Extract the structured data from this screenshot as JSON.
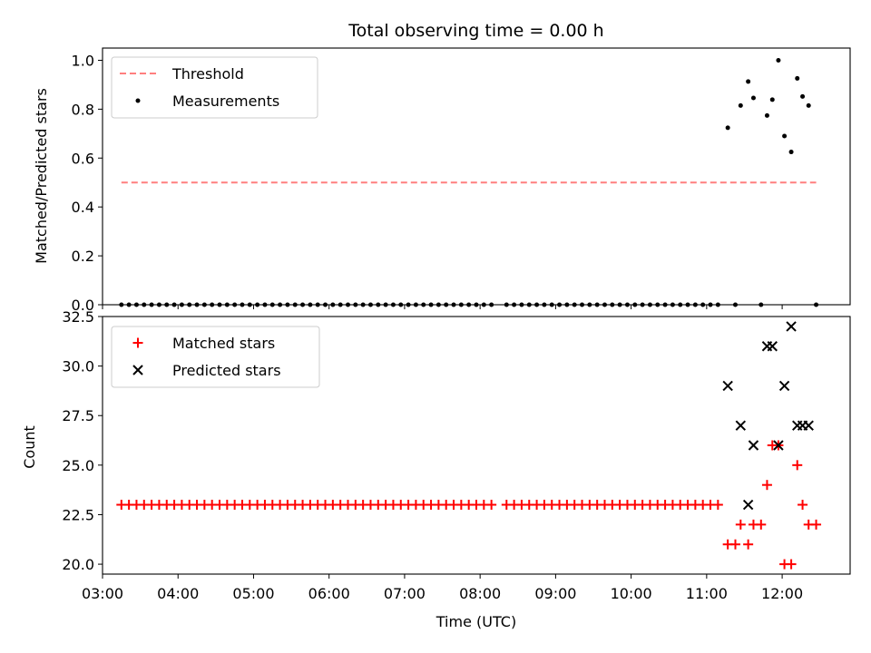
{
  "chart_data": [
    {
      "type": "scatter",
      "title": "Total observing time = 0.00 h",
      "ylabel": "Matched/Predicted stars",
      "xlabel": "",
      "xlim": [
        3.0,
        12.9
      ],
      "ylim": [
        0.0,
        1.05
      ],
      "yticks": [
        0.0,
        0.2,
        0.4,
        0.6,
        0.8,
        1.0
      ],
      "ytick_labels": [
        "0.0",
        "0.2",
        "0.4",
        "0.6",
        "0.8",
        "1.0"
      ],
      "grid": false,
      "legend_position": "top-left",
      "threshold": {
        "name": "Threshold",
        "y": 0.5,
        "x_range": [
          3.25,
          12.45
        ],
        "color": "#ff7f7f",
        "style": "dashed"
      },
      "series": [
        {
          "name": "Measurements",
          "color": "#000000",
          "marker": "dot",
          "x": [
            3.25,
            3.35,
            3.45,
            3.55,
            3.65,
            3.75,
            3.85,
            3.95,
            4.05,
            4.15,
            4.25,
            4.35,
            4.45,
            4.55,
            4.65,
            4.75,
            4.85,
            4.95,
            5.05,
            5.15,
            5.25,
            5.35,
            5.45,
            5.55,
            5.65,
            5.75,
            5.85,
            5.95,
            6.05,
            6.15,
            6.25,
            6.35,
            6.45,
            6.55,
            6.65,
            6.75,
            6.85,
            6.95,
            7.05,
            7.15,
            7.25,
            7.35,
            7.45,
            7.55,
            7.65,
            7.75,
            7.85,
            7.95,
            8.05,
            8.15,
            8.35,
            8.45,
            8.55,
            8.65,
            8.75,
            8.85,
            8.95,
            9.05,
            9.15,
            9.25,
            9.35,
            9.45,
            9.55,
            9.65,
            9.75,
            9.85,
            9.95,
            10.05,
            10.15,
            10.25,
            10.35,
            10.45,
            10.55,
            10.65,
            10.75,
            10.85,
            10.95,
            11.05,
            11.15,
            11.28,
            11.38,
            11.45,
            11.55,
            11.62,
            11.72,
            11.8,
            11.87,
            11.95,
            12.03,
            12.12,
            12.2,
            12.27,
            12.35,
            12.45
          ],
          "y": [
            0,
            0,
            0,
            0,
            0,
            0,
            0,
            0,
            0,
            0,
            0,
            0,
            0,
            0,
            0,
            0,
            0,
            0,
            0,
            0,
            0,
            0,
            0,
            0,
            0,
            0,
            0,
            0,
            0,
            0,
            0,
            0,
            0,
            0,
            0,
            0,
            0,
            0,
            0,
            0,
            0,
            0,
            0,
            0,
            0,
            0,
            0,
            0,
            0,
            0,
            0,
            0,
            0,
            0,
            0,
            0,
            0,
            0,
            0,
            0,
            0,
            0,
            0,
            0,
            0,
            0,
            0,
            0,
            0,
            0,
            0,
            0,
            0,
            0,
            0,
            0,
            0,
            0,
            0,
            0.724,
            0,
            0.815,
            0.913,
            0.846,
            0,
            0.774,
            0.839,
            1.0,
            0.69,
            0.625,
            0.926,
            0.852,
            0.815,
            0
          ]
        }
      ]
    },
    {
      "type": "scatter",
      "title": "",
      "xlabel": "Time (UTC)",
      "ylabel": "Count",
      "xlim": [
        3.0,
        12.9
      ],
      "ylim": [
        19.5,
        32.5
      ],
      "yticks": [
        20.0,
        22.5,
        25.0,
        27.5,
        30.0,
        32.5
      ],
      "ytick_labels": [
        "20.0",
        "22.5",
        "25.0",
        "27.5",
        "30.0",
        "32.5"
      ],
      "xticks": [
        3,
        4,
        5,
        6,
        7,
        8,
        9,
        10,
        11,
        12
      ],
      "xtick_labels": [
        "03:00",
        "04:00",
        "05:00",
        "06:00",
        "07:00",
        "08:00",
        "09:00",
        "10:00",
        "11:00",
        "12:00"
      ],
      "grid": false,
      "legend_position": "top-left",
      "series": [
        {
          "name": "Matched stars",
          "color": "#ff0000",
          "marker": "plus",
          "x": [
            3.25,
            3.35,
            3.45,
            3.55,
            3.65,
            3.75,
            3.85,
            3.95,
            4.05,
            4.15,
            4.25,
            4.35,
            4.45,
            4.55,
            4.65,
            4.75,
            4.85,
            4.95,
            5.05,
            5.15,
            5.25,
            5.35,
            5.45,
            5.55,
            5.65,
            5.75,
            5.85,
            5.95,
            6.05,
            6.15,
            6.25,
            6.35,
            6.45,
            6.55,
            6.65,
            6.75,
            6.85,
            6.95,
            7.05,
            7.15,
            7.25,
            7.35,
            7.45,
            7.55,
            7.65,
            7.75,
            7.85,
            7.95,
            8.05,
            8.15,
            8.35,
            8.45,
            8.55,
            8.65,
            8.75,
            8.85,
            8.95,
            9.05,
            9.15,
            9.25,
            9.35,
            9.45,
            9.55,
            9.65,
            9.75,
            9.85,
            9.95,
            10.05,
            10.15,
            10.25,
            10.35,
            10.45,
            10.55,
            10.65,
            10.75,
            10.85,
            10.95,
            11.05,
            11.15,
            11.28,
            11.38,
            11.45,
            11.55,
            11.62,
            11.72,
            11.8,
            11.87,
            11.95,
            12.03,
            12.12,
            12.2,
            12.27,
            12.35,
            12.45
          ],
          "y": [
            23,
            23,
            23,
            23,
            23,
            23,
            23,
            23,
            23,
            23,
            23,
            23,
            23,
            23,
            23,
            23,
            23,
            23,
            23,
            23,
            23,
            23,
            23,
            23,
            23,
            23,
            23,
            23,
            23,
            23,
            23,
            23,
            23,
            23,
            23,
            23,
            23,
            23,
            23,
            23,
            23,
            23,
            23,
            23,
            23,
            23,
            23,
            23,
            23,
            23,
            23,
            23,
            23,
            23,
            23,
            23,
            23,
            23,
            23,
            23,
            23,
            23,
            23,
            23,
            23,
            23,
            23,
            23,
            23,
            23,
            23,
            23,
            23,
            23,
            23,
            23,
            23,
            23,
            23,
            21,
            21,
            22,
            21,
            22,
            22,
            24,
            26,
            26,
            20,
            20,
            25,
            23,
            22,
            22
          ]
        },
        {
          "name": "Predicted stars",
          "color": "#000000",
          "marker": "x",
          "x": [
            11.28,
            11.45,
            11.55,
            11.62,
            11.8,
            11.87,
            11.95,
            12.03,
            12.12,
            12.2,
            12.27,
            12.35
          ],
          "y": [
            29,
            27,
            23,
            26,
            31,
            31,
            26,
            29,
            32,
            27,
            27,
            27
          ]
        }
      ]
    }
  ]
}
